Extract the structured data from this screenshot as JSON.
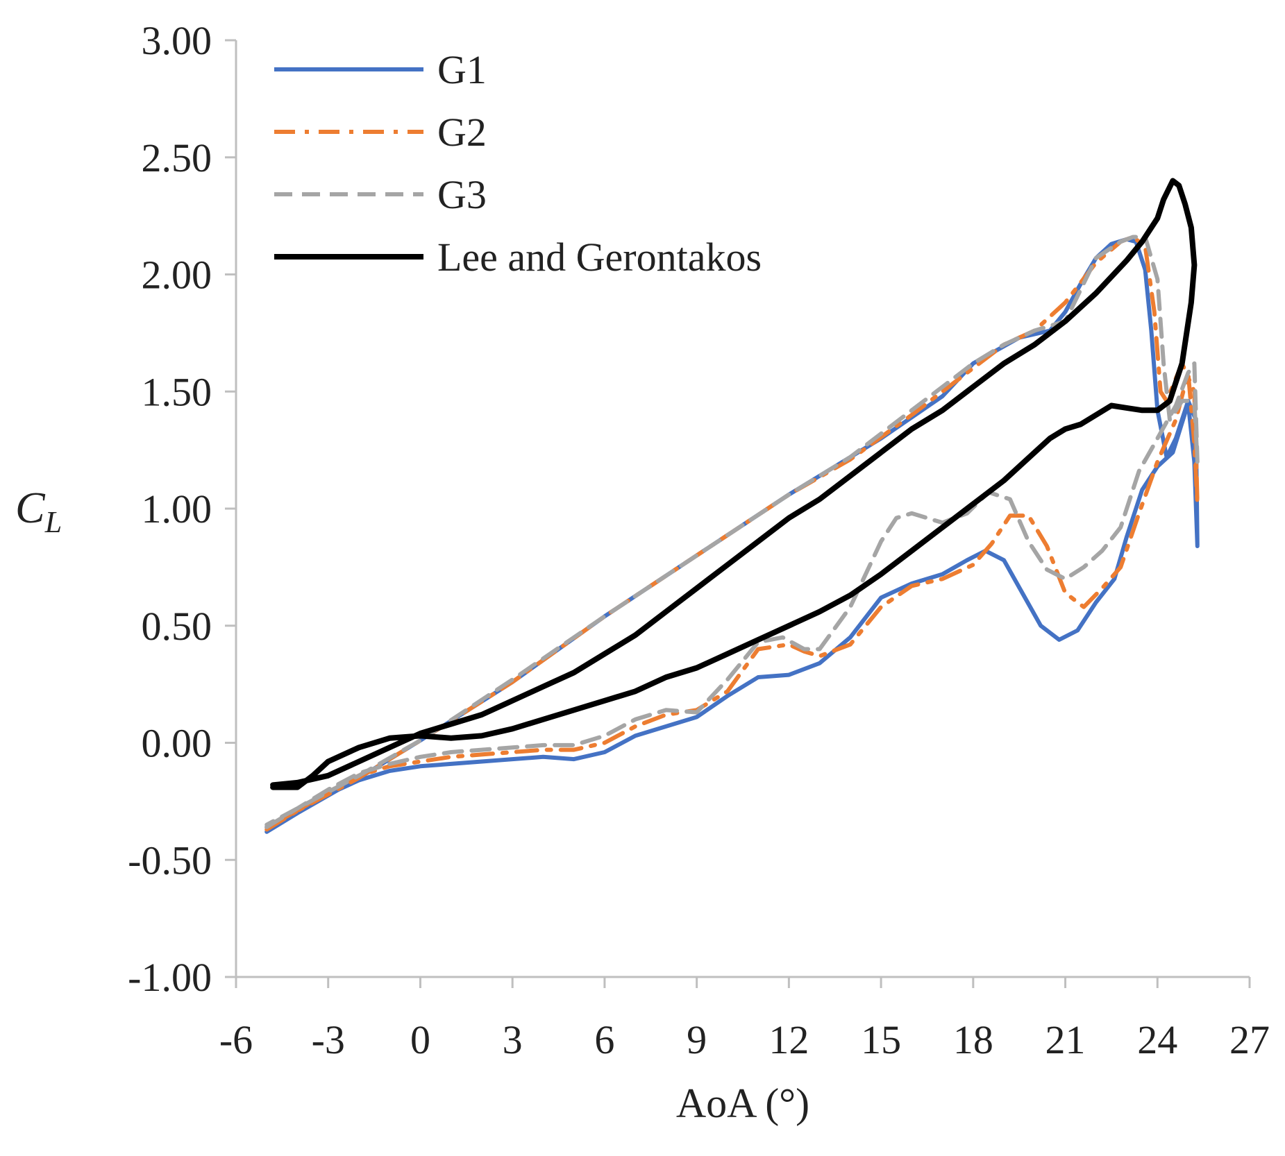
{
  "chart_data": {
    "type": "line",
    "title": "",
    "xlabel": "AoA (°)",
    "ylabel": {
      "main": "C",
      "sub": "L"
    },
    "xlim": [
      -6,
      27
    ],
    "ylim": [
      -1.0,
      3.0
    ],
    "xticks": [
      -6,
      -3,
      0,
      3,
      6,
      9,
      12,
      15,
      18,
      21,
      24,
      27
    ],
    "yticks": [
      -1.0,
      -0.5,
      0.0,
      0.5,
      1.0,
      1.5,
      2.0,
      2.5,
      3.0
    ],
    "xtick_labels": [
      "-6",
      "-3",
      "0",
      "3",
      "6",
      "9",
      "12",
      "15",
      "18",
      "21",
      "24",
      "27"
    ],
    "ytick_labels": [
      "-1.00",
      "-0.50",
      "0.00",
      "0.50",
      "1.00",
      "1.50",
      "2.00",
      "2.50",
      "3.00"
    ],
    "grid": false,
    "legend_position": "top-left",
    "series": [
      {
        "name": "G1",
        "color": "#4472C4",
        "dash": "solid",
        "points": [
          [
            -5,
            -0.38
          ],
          [
            -4,
            -0.3
          ],
          [
            -3,
            -0.22
          ],
          [
            -2,
            -0.16
          ],
          [
            -1,
            -0.12
          ],
          [
            0,
            -0.1
          ],
          [
            1,
            -0.09
          ],
          [
            2,
            -0.08
          ],
          [
            3,
            -0.07
          ],
          [
            4,
            -0.06
          ],
          [
            5,
            -0.07
          ],
          [
            6,
            -0.04
          ],
          [
            7,
            0.03
          ],
          [
            8,
            0.07
          ],
          [
            9,
            0.11
          ],
          [
            10,
            0.2
          ],
          [
            11,
            0.28
          ],
          [
            12,
            0.29
          ],
          [
            13,
            0.34
          ],
          [
            14,
            0.45
          ],
          [
            15,
            0.62
          ],
          [
            16,
            0.68
          ],
          [
            17,
            0.72
          ],
          [
            17.8,
            0.78
          ],
          [
            18.4,
            0.82
          ],
          [
            19,
            0.78
          ],
          [
            19.6,
            0.64
          ],
          [
            20.2,
            0.5
          ],
          [
            20.8,
            0.44
          ],
          [
            21.4,
            0.48
          ],
          [
            22,
            0.6
          ],
          [
            22.6,
            0.7
          ],
          [
            23,
            0.88
          ],
          [
            23.5,
            1.08
          ],
          [
            24,
            1.18
          ],
          [
            24.5,
            1.24
          ],
          [
            25,
            1.45
          ],
          [
            25.2,
            1.2
          ],
          [
            25.3,
            0.84
          ],
          [
            25.25,
            1.38
          ],
          [
            25,
            1.46
          ],
          [
            24.6,
            1.3
          ],
          [
            24.3,
            1.22
          ],
          [
            24,
            1.42
          ],
          [
            23.8,
            1.76
          ],
          [
            23.6,
            2.02
          ],
          [
            23.3,
            2.14
          ],
          [
            23,
            2.15
          ],
          [
            22.5,
            2.13
          ],
          [
            22,
            2.07
          ],
          [
            21.5,
            1.96
          ],
          [
            21,
            1.84
          ],
          [
            20.5,
            1.76
          ],
          [
            19.5,
            1.73
          ],
          [
            18,
            1.62
          ],
          [
            17,
            1.48
          ],
          [
            15,
            1.3
          ],
          [
            12,
            1.06
          ],
          [
            9,
            0.8
          ],
          [
            6,
            0.54
          ],
          [
            3,
            0.26
          ],
          [
            0,
            0.01
          ],
          [
            -2,
            -0.15
          ],
          [
            -4,
            -0.3
          ],
          [
            -5,
            -0.36
          ]
        ]
      },
      {
        "name": "G2",
        "color": "#ED7D31",
        "dash": "dashdot",
        "points": [
          [
            -5,
            -0.37
          ],
          [
            -4,
            -0.29
          ],
          [
            -3,
            -0.21
          ],
          [
            -2,
            -0.14
          ],
          [
            -1,
            -0.1
          ],
          [
            0,
            -0.08
          ],
          [
            1,
            -0.06
          ],
          [
            2,
            -0.05
          ],
          [
            3,
            -0.04
          ],
          [
            4,
            -0.03
          ],
          [
            5,
            -0.03
          ],
          [
            6,
            0.0
          ],
          [
            7,
            0.07
          ],
          [
            8,
            0.12
          ],
          [
            9,
            0.14
          ],
          [
            10,
            0.22
          ],
          [
            11,
            0.4
          ],
          [
            12,
            0.42
          ],
          [
            12.5,
            0.39
          ],
          [
            13,
            0.37
          ],
          [
            14,
            0.42
          ],
          [
            15,
            0.58
          ],
          [
            16,
            0.67
          ],
          [
            17,
            0.7
          ],
          [
            18,
            0.76
          ],
          [
            18.6,
            0.85
          ],
          [
            19.2,
            0.97
          ],
          [
            19.8,
            0.97
          ],
          [
            20.4,
            0.84
          ],
          [
            21,
            0.64
          ],
          [
            21.6,
            0.58
          ],
          [
            22.2,
            0.66
          ],
          [
            22.8,
            0.75
          ],
          [
            23.4,
            0.98
          ],
          [
            24,
            1.2
          ],
          [
            24.6,
            1.38
          ],
          [
            25,
            1.58
          ],
          [
            25.2,
            1.28
          ],
          [
            25.3,
            1.02
          ],
          [
            25.2,
            1.5
          ],
          [
            24.8,
            1.62
          ],
          [
            24.3,
            1.46
          ],
          [
            24.1,
            1.5
          ],
          [
            23.9,
            1.84
          ],
          [
            23.6,
            2.12
          ],
          [
            23.2,
            2.16
          ],
          [
            22.8,
            2.14
          ],
          [
            22,
            2.05
          ],
          [
            21,
            1.88
          ],
          [
            20,
            1.76
          ],
          [
            19,
            1.7
          ],
          [
            18,
            1.6
          ],
          [
            16,
            1.4
          ],
          [
            14,
            1.21
          ],
          [
            12,
            1.06
          ],
          [
            9,
            0.8
          ],
          [
            6,
            0.54
          ],
          [
            3,
            0.26
          ],
          [
            0,
            0.01
          ],
          [
            -2,
            -0.15
          ],
          [
            -4,
            -0.29
          ],
          [
            -5,
            -0.36
          ]
        ]
      },
      {
        "name": "G3",
        "color": "#A5A5A5",
        "dash": "dashed",
        "points": [
          [
            -5,
            -0.36
          ],
          [
            -4,
            -0.28
          ],
          [
            -3,
            -0.2
          ],
          [
            -2,
            -0.13
          ],
          [
            -1,
            -0.09
          ],
          [
            0,
            -0.06
          ],
          [
            1,
            -0.04
          ],
          [
            2,
            -0.03
          ],
          [
            3,
            -0.02
          ],
          [
            4,
            -0.01
          ],
          [
            5,
            -0.01
          ],
          [
            6,
            0.03
          ],
          [
            7,
            0.1
          ],
          [
            8,
            0.14
          ],
          [
            9,
            0.13
          ],
          [
            10,
            0.27
          ],
          [
            11,
            0.43
          ],
          [
            11.8,
            0.45
          ],
          [
            12.5,
            0.4
          ],
          [
            13,
            0.4
          ],
          [
            14,
            0.58
          ],
          [
            15,
            0.86
          ],
          [
            15.5,
            0.96
          ],
          [
            16,
            0.98
          ],
          [
            17,
            0.94
          ],
          [
            17.8,
            0.98
          ],
          [
            18.5,
            1.07
          ],
          [
            19.2,
            1.04
          ],
          [
            19.8,
            0.86
          ],
          [
            20.4,
            0.74
          ],
          [
            21,
            0.7
          ],
          [
            21.6,
            0.75
          ],
          [
            22.2,
            0.82
          ],
          [
            22.8,
            0.92
          ],
          [
            23.4,
            1.16
          ],
          [
            24,
            1.3
          ],
          [
            24.6,
            1.44
          ],
          [
            25,
            1.58
          ],
          [
            25.2,
            1.62
          ],
          [
            25.3,
            1.2
          ],
          [
            25.2,
            1.46
          ],
          [
            24.8,
            1.46
          ],
          [
            24.4,
            1.38
          ],
          [
            24.2,
            1.62
          ],
          [
            24,
            1.98
          ],
          [
            23.6,
            2.16
          ],
          [
            23.2,
            2.16
          ],
          [
            22.8,
            2.14
          ],
          [
            22,
            2.07
          ],
          [
            21,
            1.8
          ],
          [
            20,
            1.76
          ],
          [
            19,
            1.7
          ],
          [
            18,
            1.62
          ],
          [
            16,
            1.42
          ],
          [
            14,
            1.22
          ],
          [
            12,
            1.06
          ],
          [
            9,
            0.8
          ],
          [
            6,
            0.54
          ],
          [
            3,
            0.27
          ],
          [
            0,
            0.01
          ],
          [
            -2,
            -0.14
          ],
          [
            -4,
            -0.28
          ],
          [
            -5,
            -0.35
          ]
        ]
      },
      {
        "name": "Lee and Gerontakos",
        "color": "#000000",
        "dash": "solid",
        "points": [
          [
            -4.8,
            -0.19
          ],
          [
            -4,
            -0.19
          ],
          [
            -3.5,
            -0.14
          ],
          [
            -3,
            -0.08
          ],
          [
            -2,
            -0.02
          ],
          [
            -1,
            0.02
          ],
          [
            0,
            0.03
          ],
          [
            1,
            0.02
          ],
          [
            2,
            0.03
          ],
          [
            3,
            0.06
          ],
          [
            4,
            0.1
          ],
          [
            5,
            0.14
          ],
          [
            6,
            0.18
          ],
          [
            7,
            0.22
          ],
          [
            8,
            0.28
          ],
          [
            9,
            0.32
          ],
          [
            10,
            0.38
          ],
          [
            11,
            0.44
          ],
          [
            12,
            0.5
          ],
          [
            13,
            0.56
          ],
          [
            14,
            0.63
          ],
          [
            15,
            0.72
          ],
          [
            16,
            0.82
          ],
          [
            17,
            0.92
          ],
          [
            18,
            1.02
          ],
          [
            19,
            1.12
          ],
          [
            20,
            1.24
          ],
          [
            20.5,
            1.3
          ],
          [
            21,
            1.34
          ],
          [
            21.5,
            1.36
          ],
          [
            22,
            1.4
          ],
          [
            22.5,
            1.44
          ],
          [
            23,
            1.43
          ],
          [
            23.5,
            1.42
          ],
          [
            24,
            1.42
          ],
          [
            24.4,
            1.46
          ],
          [
            24.8,
            1.62
          ],
          [
            25.1,
            1.88
          ],
          [
            25.2,
            2.04
          ],
          [
            25.1,
            2.2
          ],
          [
            24.9,
            2.3
          ],
          [
            24.7,
            2.38
          ],
          [
            24.5,
            2.4
          ],
          [
            24.2,
            2.32
          ],
          [
            24,
            2.24
          ],
          [
            23.5,
            2.14
          ],
          [
            23,
            2.06
          ],
          [
            22,
            1.92
          ],
          [
            21,
            1.8
          ],
          [
            20,
            1.7
          ],
          [
            19,
            1.62
          ],
          [
            18,
            1.52
          ],
          [
            17,
            1.42
          ],
          [
            16,
            1.34
          ],
          [
            15,
            1.24
          ],
          [
            14,
            1.14
          ],
          [
            13,
            1.04
          ],
          [
            12,
            0.96
          ],
          [
            11,
            0.86
          ],
          [
            10,
            0.76
          ],
          [
            9,
            0.66
          ],
          [
            8,
            0.56
          ],
          [
            7,
            0.46
          ],
          [
            6,
            0.38
          ],
          [
            5,
            0.3
          ],
          [
            4,
            0.24
          ],
          [
            3,
            0.18
          ],
          [
            2,
            0.12
          ],
          [
            1,
            0.08
          ],
          [
            0,
            0.04
          ],
          [
            -1,
            -0.02
          ],
          [
            -2,
            -0.08
          ],
          [
            -3,
            -0.14
          ],
          [
            -4,
            -0.17
          ],
          [
            -4.8,
            -0.18
          ]
        ]
      }
    ]
  }
}
